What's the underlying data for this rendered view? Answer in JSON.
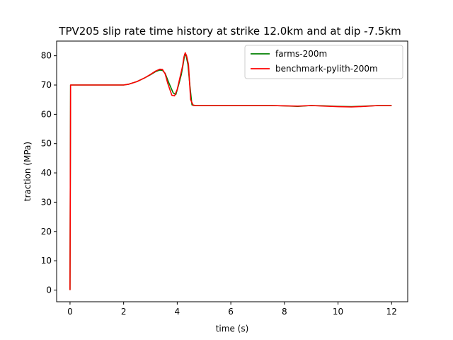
{
  "chart_data": {
    "type": "line",
    "title": "TPV205 slip rate time history at strike 12.0km and at dip -7.5km",
    "xlabel": "time (s)",
    "ylabel": "traction (MPa)",
    "xlim": [
      -0.5,
      12.6
    ],
    "ylim": [
      -4,
      85
    ],
    "xticks": [
      0,
      2,
      4,
      6,
      8,
      10,
      12
    ],
    "yticks": [
      0,
      10,
      20,
      30,
      40,
      50,
      60,
      70,
      80
    ],
    "grid": false,
    "legend_position": "top-right",
    "series": [
      {
        "name": "farms-200m",
        "color": "#008000",
        "x": [
          0,
          0.02,
          0.1,
          0.5,
          1.0,
          1.5,
          2.0,
          2.2,
          2.5,
          2.8,
          3.0,
          3.2,
          3.35,
          3.45,
          3.55,
          3.7,
          3.85,
          3.95,
          4.05,
          4.15,
          4.22,
          4.28,
          4.33,
          4.4,
          4.47,
          4.55,
          4.7,
          5.0,
          6.0,
          7.0,
          7.5,
          8.0,
          8.5,
          9.0,
          9.5,
          10.0,
          10.5,
          11.0,
          11.5,
          12.0
        ],
        "y": [
          0,
          70,
          70,
          70,
          70,
          70,
          70,
          70.3,
          71.2,
          72.5,
          73.5,
          74.6,
          75.1,
          75.0,
          74.0,
          70.5,
          67.3,
          66.8,
          70.0,
          73.5,
          77.0,
          80.5,
          80.0,
          77.0,
          70.0,
          63.2,
          63.0,
          63.0,
          63.0,
          63.0,
          63.0,
          62.9,
          62.7,
          63.0,
          62.9,
          62.7,
          62.6,
          62.8,
          63.0,
          63.0
        ]
      },
      {
        "name": "benchmark-pylith-200m",
        "color": "#ff0000",
        "x": [
          0,
          0.02,
          0.1,
          0.5,
          1.0,
          1.5,
          2.0,
          2.2,
          2.5,
          2.8,
          3.0,
          3.2,
          3.35,
          3.45,
          3.55,
          3.65,
          3.8,
          3.9,
          4.0,
          4.1,
          4.2,
          4.25,
          4.3,
          4.35,
          4.42,
          4.5,
          4.6,
          4.8,
          5.0,
          6.0,
          7.0,
          7.5,
          8.0,
          8.5,
          9.0,
          9.5,
          10.0,
          10.5,
          11.0,
          11.5,
          12.0
        ],
        "y": [
          0,
          70,
          70,
          70,
          70,
          70,
          70,
          70.3,
          71.2,
          72.5,
          73.6,
          74.8,
          75.4,
          75.3,
          73.8,
          70.5,
          66.5,
          66.3,
          68.5,
          72.5,
          76.5,
          79.5,
          81.0,
          80.0,
          77.0,
          65.0,
          63.0,
          63.0,
          63.0,
          63.0,
          63.0,
          63.0,
          62.9,
          62.8,
          63.0,
          62.8,
          62.6,
          62.5,
          62.7,
          63.0,
          63.0
        ]
      }
    ]
  }
}
